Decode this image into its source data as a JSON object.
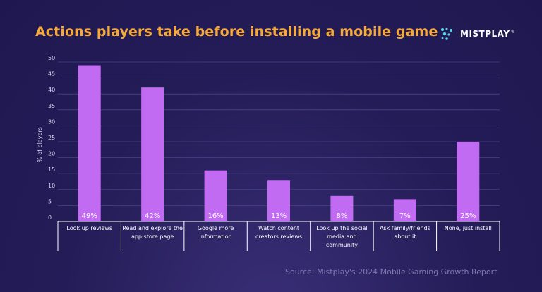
{
  "header": {
    "title": "Actions players take before installing a mobile game",
    "brand": "MISTPLAY",
    "brand_mark": "®"
  },
  "footer": {
    "source": "Source:  Mistplay's 2024 Mobile Gaming Growth Report"
  },
  "colors": {
    "background": "#241c57",
    "bar": "#c06bf2",
    "title": "#f6a93b",
    "grid": "#4a4388",
    "logo_accent": "#4fd8e6"
  },
  "chart_data": {
    "type": "bar",
    "title": "Actions players take before installing a mobile game",
    "xlabel": "",
    "ylabel": "% of players",
    "ylim": [
      0,
      50
    ],
    "yticks": [
      0,
      5,
      10,
      15,
      20,
      25,
      30,
      35,
      40,
      45,
      50
    ],
    "grid": true,
    "categories": [
      [
        "Look up reviews"
      ],
      [
        "Read and explore the",
        "app store page"
      ],
      [
        "Google more",
        "information"
      ],
      [
        "Watch content",
        "creators reviews"
      ],
      [
        "Look up the social",
        "media and",
        "community"
      ],
      [
        "Ask family/friends",
        "about it"
      ],
      [
        "None, just install"
      ]
    ],
    "values": [
      49,
      42,
      16,
      13,
      8,
      7,
      25
    ],
    "data_labels": [
      "49%",
      "42%",
      "16%",
      "13%",
      "8%",
      "7%",
      "25%"
    ]
  }
}
